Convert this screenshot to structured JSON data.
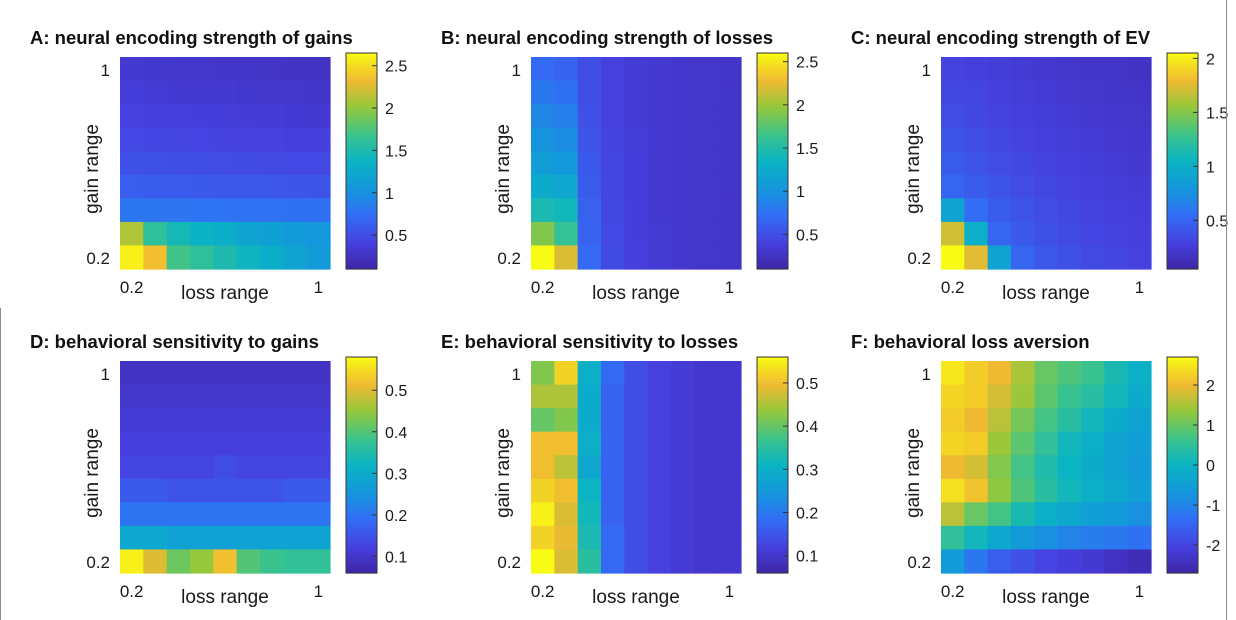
{
  "chart_data": [
    {
      "type": "heatmap",
      "title": "A: neural encoding strength of gains",
      "xlabel": "loss range",
      "ylabel": "gain range",
      "xticks": [
        "0.2",
        "1"
      ],
      "yticks": [
        "0.2",
        "1"
      ],
      "colorbar_ticks": [
        0.5,
        1,
        1.5,
        2,
        2.5
      ],
      "clim": [
        0.1,
        2.65
      ],
      "rows_top_to_bottom": [
        [
          0.33,
          0.31,
          0.3,
          0.29,
          0.28,
          0.27,
          0.26,
          0.25,
          0.24
        ],
        [
          0.37,
          0.35,
          0.34,
          0.33,
          0.32,
          0.31,
          0.3,
          0.29,
          0.28
        ],
        [
          0.41,
          0.4,
          0.39,
          0.38,
          0.37,
          0.36,
          0.35,
          0.34,
          0.33
        ],
        [
          0.46,
          0.45,
          0.44,
          0.43,
          0.42,
          0.41,
          0.41,
          0.4,
          0.39
        ],
        [
          0.53,
          0.52,
          0.51,
          0.5,
          0.49,
          0.48,
          0.47,
          0.46,
          0.46
        ],
        [
          0.62,
          0.61,
          0.6,
          0.59,
          0.58,
          0.58,
          0.57,
          0.56,
          0.55
        ],
        [
          0.8,
          0.8,
          0.79,
          0.78,
          0.78,
          0.77,
          0.77,
          0.76,
          0.76
        ],
        [
          2.1,
          1.6,
          1.45,
          1.35,
          1.3,
          1.2,
          1.15,
          1.1,
          1.05
        ],
        [
          2.6,
          2.35,
          1.7,
          1.6,
          1.5,
          1.4,
          1.3,
          1.2,
          1.1
        ]
      ]
    },
    {
      "type": "heatmap",
      "title": "B: neural encoding strength of losses",
      "xlabel": "loss range",
      "ylabel": "gain range",
      "xticks": [
        "0.2",
        "1"
      ],
      "yticks": [
        "0.2",
        "1"
      ],
      "colorbar_ticks": [
        0.5,
        1,
        1.5,
        2,
        2.5
      ],
      "clim": [
        0.1,
        2.6
      ],
      "rows_top_to_bottom": [
        [
          0.7,
          0.65,
          0.5,
          0.4,
          0.35,
          0.32,
          0.3,
          0.28,
          0.27
        ],
        [
          0.8,
          0.75,
          0.5,
          0.4,
          0.35,
          0.32,
          0.3,
          0.28,
          0.27
        ],
        [
          0.9,
          0.85,
          0.52,
          0.4,
          0.35,
          0.32,
          0.3,
          0.28,
          0.27
        ],
        [
          1.0,
          0.95,
          0.55,
          0.42,
          0.36,
          0.33,
          0.3,
          0.28,
          0.27
        ],
        [
          1.1,
          1.05,
          0.58,
          0.43,
          0.37,
          0.33,
          0.3,
          0.28,
          0.27
        ],
        [
          1.25,
          1.2,
          0.6,
          0.44,
          0.37,
          0.33,
          0.3,
          0.28,
          0.27
        ],
        [
          1.45,
          1.4,
          0.63,
          0.45,
          0.38,
          0.33,
          0.3,
          0.28,
          0.27
        ],
        [
          1.9,
          1.6,
          0.65,
          0.46,
          0.38,
          0.34,
          0.3,
          0.28,
          0.27
        ],
        [
          2.6,
          2.2,
          0.7,
          0.47,
          0.39,
          0.34,
          0.3,
          0.28,
          0.27
        ]
      ]
    },
    {
      "type": "heatmap",
      "title": "C: neural encoding strength of EV",
      "xlabel": "loss range",
      "ylabel": "gain range",
      "xticks": [
        "0.2",
        "1"
      ],
      "yticks": [
        "0.2",
        "1"
      ],
      "colorbar_ticks": [
        0.5,
        1,
        1.5,
        2
      ],
      "clim": [
        0.05,
        2.05
      ],
      "rows_top_to_bottom": [
        [
          0.3,
          0.28,
          0.26,
          0.24,
          0.22,
          0.2,
          0.19,
          0.18,
          0.17
        ],
        [
          0.33,
          0.31,
          0.28,
          0.26,
          0.24,
          0.22,
          0.2,
          0.19,
          0.18
        ],
        [
          0.36,
          0.33,
          0.3,
          0.28,
          0.26,
          0.24,
          0.22,
          0.21,
          0.2
        ],
        [
          0.4,
          0.36,
          0.33,
          0.3,
          0.28,
          0.26,
          0.24,
          0.22,
          0.21
        ],
        [
          0.45,
          0.4,
          0.36,
          0.33,
          0.3,
          0.28,
          0.26,
          0.24,
          0.23
        ],
        [
          0.5,
          0.45,
          0.4,
          0.36,
          0.33,
          0.3,
          0.28,
          0.26,
          0.25
        ],
        [
          0.9,
          0.55,
          0.45,
          0.4,
          0.36,
          0.33,
          0.3,
          0.28,
          0.27
        ],
        [
          1.7,
          1.0,
          0.5,
          0.43,
          0.38,
          0.35,
          0.32,
          0.3,
          0.28
        ],
        [
          2.05,
          1.75,
          0.9,
          0.5,
          0.42,
          0.38,
          0.34,
          0.31,
          0.29
        ]
      ]
    },
    {
      "type": "heatmap",
      "title": "D: behavioral sensitivity to gains",
      "xlabel": "loss range",
      "ylabel": "gain range",
      "xticks": [
        "0.2",
        "1"
      ],
      "yticks": [
        "0.2",
        "1"
      ],
      "colorbar_ticks": [
        0.1,
        0.2,
        0.3,
        0.4,
        0.5
      ],
      "clim": [
        0.06,
        0.58
      ],
      "rows_top_to_bottom": [
        [
          0.09,
          0.09,
          0.09,
          0.09,
          0.09,
          0.09,
          0.09,
          0.09,
          0.09
        ],
        [
          0.1,
          0.1,
          0.1,
          0.1,
          0.1,
          0.1,
          0.1,
          0.1,
          0.1
        ],
        [
          0.11,
          0.11,
          0.11,
          0.11,
          0.11,
          0.11,
          0.11,
          0.11,
          0.11
        ],
        [
          0.12,
          0.12,
          0.12,
          0.12,
          0.12,
          0.12,
          0.12,
          0.12,
          0.12
        ],
        [
          0.13,
          0.13,
          0.13,
          0.13,
          0.14,
          0.13,
          0.13,
          0.13,
          0.13
        ],
        [
          0.16,
          0.16,
          0.15,
          0.15,
          0.15,
          0.15,
          0.15,
          0.16,
          0.16
        ],
        [
          0.2,
          0.2,
          0.2,
          0.2,
          0.2,
          0.2,
          0.2,
          0.2,
          0.2
        ],
        [
          0.29,
          0.29,
          0.28,
          0.28,
          0.28,
          0.28,
          0.28,
          0.28,
          0.28
        ],
        [
          0.57,
          0.5,
          0.42,
          0.45,
          0.52,
          0.4,
          0.38,
          0.37,
          0.37
        ]
      ]
    },
    {
      "type": "heatmap",
      "title": "E: behavioral sensitivity to losses",
      "xlabel": "loss range",
      "ylabel": "gain range",
      "xticks": [
        "0.2",
        "1"
      ],
      "yticks": [
        "0.2",
        "1"
      ],
      "colorbar_ticks": [
        0.1,
        0.2,
        0.3,
        0.4,
        0.5
      ],
      "clim": [
        0.06,
        0.56
      ],
      "rows_top_to_bottom": [
        [
          0.42,
          0.52,
          0.3,
          0.18,
          0.14,
          0.12,
          0.11,
          0.1,
          0.1
        ],
        [
          0.45,
          0.45,
          0.29,
          0.17,
          0.14,
          0.12,
          0.11,
          0.1,
          0.1
        ],
        [
          0.4,
          0.42,
          0.29,
          0.17,
          0.14,
          0.12,
          0.11,
          0.1,
          0.1
        ],
        [
          0.5,
          0.5,
          0.3,
          0.17,
          0.14,
          0.12,
          0.11,
          0.1,
          0.1
        ],
        [
          0.5,
          0.46,
          0.28,
          0.17,
          0.14,
          0.12,
          0.11,
          0.1,
          0.1
        ],
        [
          0.52,
          0.5,
          0.31,
          0.17,
          0.14,
          0.12,
          0.11,
          0.1,
          0.1
        ],
        [
          0.55,
          0.48,
          0.32,
          0.17,
          0.14,
          0.12,
          0.11,
          0.1,
          0.1
        ],
        [
          0.52,
          0.49,
          0.33,
          0.18,
          0.14,
          0.12,
          0.11,
          0.1,
          0.1
        ],
        [
          0.56,
          0.48,
          0.35,
          0.18,
          0.14,
          0.12,
          0.11,
          0.1,
          0.1
        ]
      ]
    },
    {
      "type": "heatmap",
      "title": "F: behavioral loss aversion",
      "xlabel": "loss range",
      "ylabel": "gain range",
      "xticks": [
        "0.2",
        "1"
      ],
      "yticks": [
        "0.2",
        "1"
      ],
      "colorbar_ticks": [
        -2,
        -1,
        0,
        1,
        2
      ],
      "clim": [
        -2.7,
        2.7
      ],
      "rows_top_to_bottom": [
        [
          2.5,
          2.2,
          2.0,
          1.5,
          1.0,
          0.8,
          0.6,
          0.2,
          -0.1
        ],
        [
          2.3,
          2.2,
          1.8,
          1.4,
          0.9,
          0.6,
          0.4,
          0.1,
          -0.2
        ],
        [
          2.2,
          2.0,
          1.6,
          1.1,
          0.7,
          0.4,
          0.1,
          -0.2,
          -0.4
        ],
        [
          2.3,
          2.2,
          1.4,
          0.9,
          0.5,
          0.1,
          -0.1,
          -0.4,
          -0.5
        ],
        [
          2.0,
          1.8,
          1.2,
          0.7,
          0.3,
          0.0,
          -0.2,
          -0.4,
          -0.6
        ],
        [
          2.4,
          2.1,
          1.3,
          0.8,
          0.4,
          0.1,
          -0.1,
          -0.3,
          -0.5
        ],
        [
          1.6,
          1.0,
          0.7,
          0.2,
          -0.1,
          -0.3,
          -0.5,
          -0.6,
          -0.8
        ],
        [
          0.5,
          0.1,
          -0.3,
          -0.6,
          -0.8,
          -1.0,
          -1.1,
          -1.2,
          -1.3
        ],
        [
          -0.6,
          -1.2,
          -1.6,
          -1.8,
          -2.0,
          -2.1,
          -2.2,
          -2.4,
          -2.5
        ]
      ]
    }
  ]
}
